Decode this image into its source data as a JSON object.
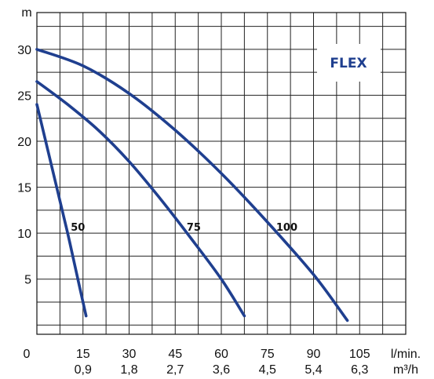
{
  "chart_data": {
    "type": "line",
    "badge": "FLEX",
    "y_unit": "m",
    "x_unit_primary": "l/min.",
    "x_unit_secondary": "m³/h",
    "origin_label": "0",
    "x_ticks": [
      {
        "value": 15,
        "primary": "15",
        "secondary": "0,9"
      },
      {
        "value": 30,
        "primary": "30",
        "secondary": "1,8"
      },
      {
        "value": 45,
        "primary": "45",
        "secondary": "2,7"
      },
      {
        "value": 60,
        "primary": "60",
        "secondary": "3,6"
      },
      {
        "value": 75,
        "primary": "75",
        "secondary": "4,5"
      },
      {
        "value": 90,
        "primary": "90",
        "secondary": "5,4"
      },
      {
        "value": 105,
        "primary": "105",
        "secondary": "6,3"
      }
    ],
    "y_ticks": [
      {
        "value": 5,
        "label": "5"
      },
      {
        "value": 10,
        "label": "10"
      },
      {
        "value": 15,
        "label": "15"
      },
      {
        "value": 20,
        "label": "20"
      },
      {
        "value": 25,
        "label": "25"
      },
      {
        "value": 30,
        "label": "30"
      }
    ],
    "xlim": [
      0,
      120
    ],
    "ylim": [
      -1,
      34
    ],
    "grid": true,
    "line_color": "#1f3f8f",
    "series": [
      {
        "name": "50",
        "points": [
          [
            0,
            24
          ],
          [
            5,
            17
          ],
          [
            10,
            10
          ],
          [
            14,
            4
          ],
          [
            16,
            1
          ]
        ]
      },
      {
        "name": "75",
        "points": [
          [
            0,
            26.5
          ],
          [
            10,
            24
          ],
          [
            20,
            21.2
          ],
          [
            30,
            17.8
          ],
          [
            40,
            13.8
          ],
          [
            50,
            9.5
          ],
          [
            60,
            5
          ],
          [
            67.5,
            1
          ]
        ]
      },
      {
        "name": "100",
        "points": [
          [
            0,
            30
          ],
          [
            15,
            28.2
          ],
          [
            30,
            25.2
          ],
          [
            45,
            21.2
          ],
          [
            60,
            16.5
          ],
          [
            75,
            11.2
          ],
          [
            90,
            5.5
          ],
          [
            101,
            0.5
          ]
        ]
      }
    ]
  }
}
